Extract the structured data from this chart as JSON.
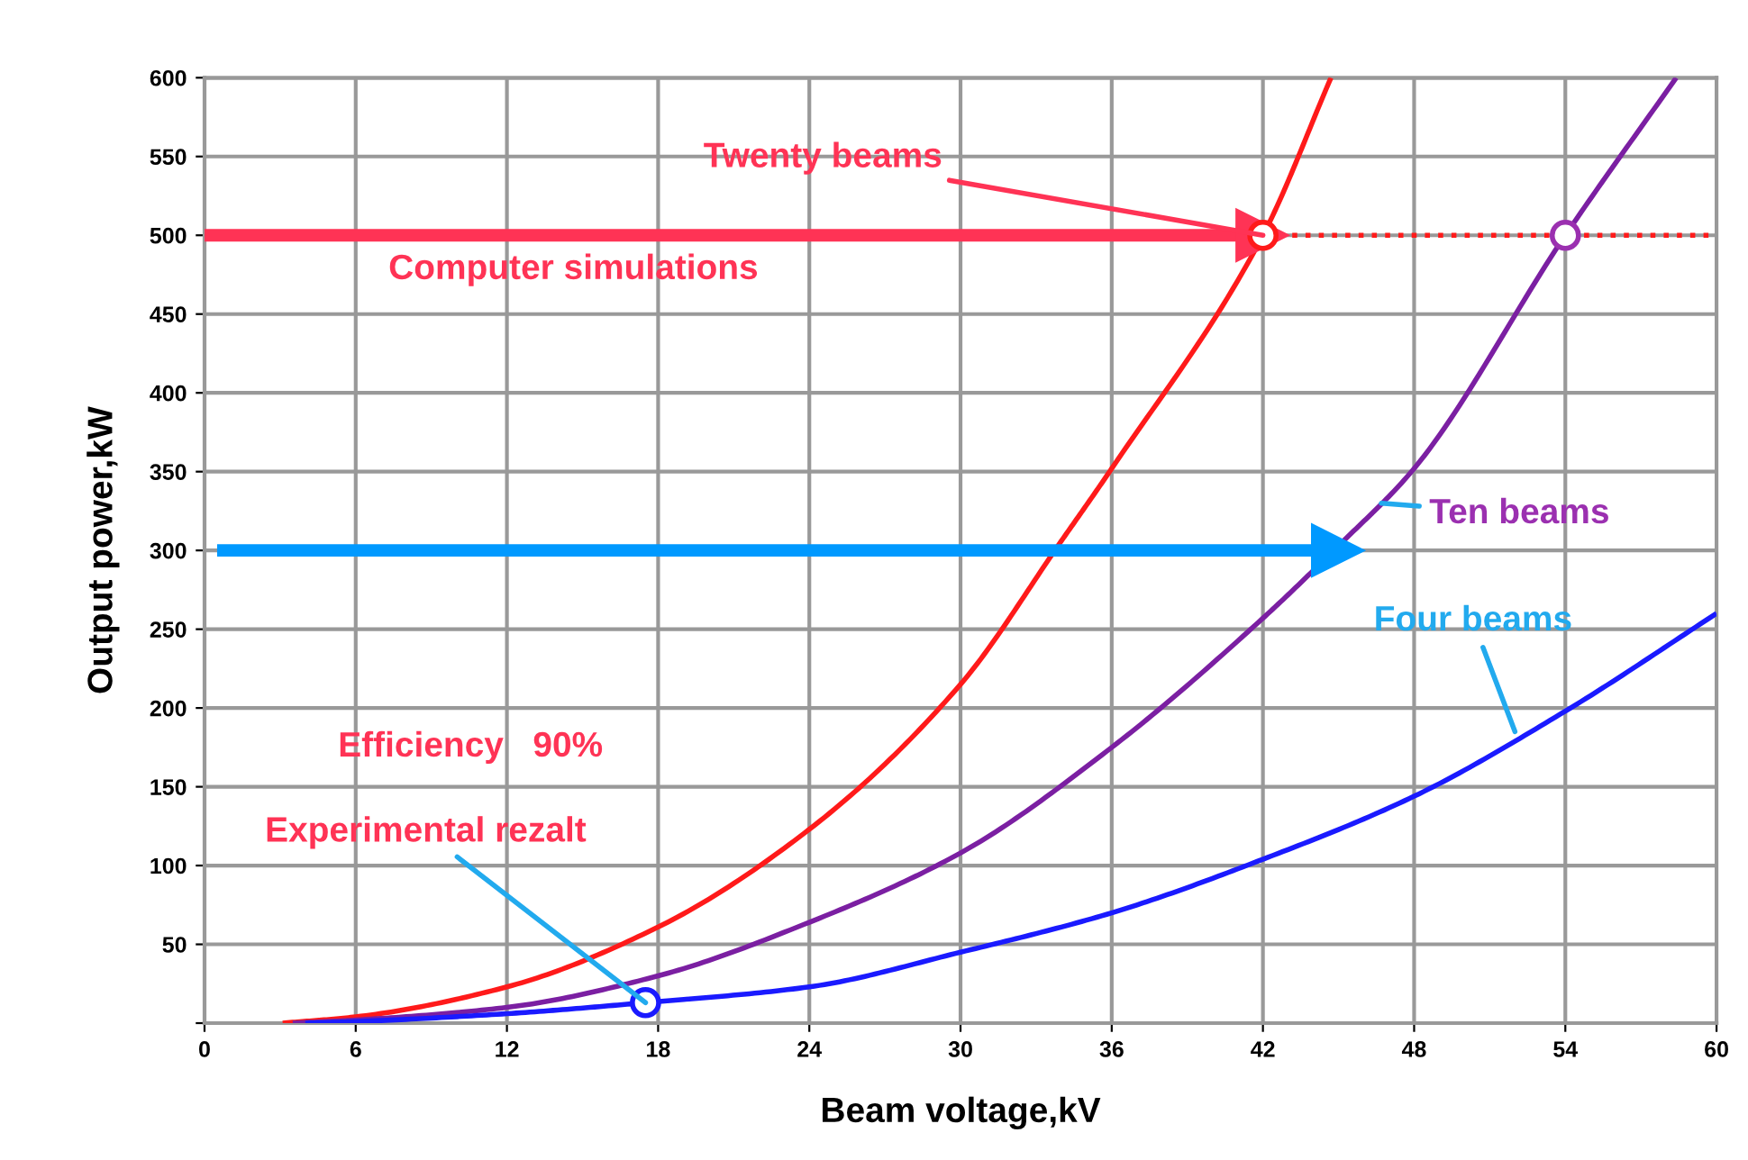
{
  "chart_data": {
    "type": "line",
    "xlabel": "Beam voltage,kV",
    "ylabel": "Output power,kW",
    "xlim": [
      0,
      60
    ],
    "ylim": [
      0,
      600
    ],
    "xticks": [
      0,
      6,
      12,
      18,
      24,
      30,
      36,
      42,
      48,
      54,
      60
    ],
    "yticks": [
      {
        "value": 0,
        "label": null
      },
      50,
      100,
      150,
      200,
      250,
      300,
      350,
      400,
      450,
      500,
      550,
      600
    ],
    "grid": true,
    "legend": false,
    "marker": "none",
    "line_style": "solid",
    "series": [
      {
        "color": "#ff1a1a",
        "x": [
          3.1,
          6,
          12,
          18,
          24,
          30,
          34,
          36,
          42,
          44.7
        ],
        "values": [
          0,
          4,
          23,
          61,
          123,
          215,
          306,
          352,
          500,
          600
        ]
      },
      {
        "color": "#7b1fa2",
        "x": [
          3.5,
          6,
          12,
          18,
          24,
          30,
          36,
          42,
          45,
          48,
          54,
          58.4
        ],
        "values": [
          0,
          2,
          10,
          30,
          64,
          108,
          175,
          257,
          303,
          352,
          500,
          600
        ]
      },
      {
        "color": "#1a1aff",
        "x": [
          4,
          6,
          12,
          17.5,
          24,
          30,
          36,
          42,
          48,
          54,
          60
        ],
        "values": [
          0,
          1,
          6,
          13,
          23,
          45,
          70,
          104,
          144,
          198,
          260
        ]
      },
      {
        "type": "line",
        "marker": "triangle",
        "color": "#ff3355",
        "x": [
          0,
          42
        ],
        "values": [
          500,
          500
        ]
      },
      {
        "type": "line",
        "marker": "triangle",
        "color": "#0099ff",
        "x": [
          0.5,
          45
        ],
        "values": [
          300,
          300
        ]
      },
      {
        "type": "scatter",
        "marker": "circle",
        "color": "#ff1a1a",
        "x": [
          42
        ],
        "values": [
          500
        ]
      },
      {
        "type": "scatter",
        "marker": "circle",
        "color": "#9b30b0",
        "x": [
          54
        ],
        "values": [
          500
        ]
      },
      {
        "type": "scatter",
        "marker": "circle",
        "color": "#1a1aff",
        "x": [
          17.5
        ],
        "values": [
          13
        ]
      }
    ],
    "ref_lines": [
      {
        "axis": "y",
        "value": 500,
        "color": "#ff1a1a",
        "line_style": "dotted"
      }
    ],
    "annotations": [
      {
        "text": "Twenty beams",
        "x": 42,
        "y": 500
      },
      "Computer simulations",
      {
        "text": "Ten beams",
        "x": 46.7,
        "y": 330
      },
      {
        "text": "Four beams",
        "x": 52,
        "y": 185
      },
      "Efficiency   90%",
      {
        "text": "Experimental rezalt",
        "x": 17.5,
        "y": 13
      }
    ]
  }
}
